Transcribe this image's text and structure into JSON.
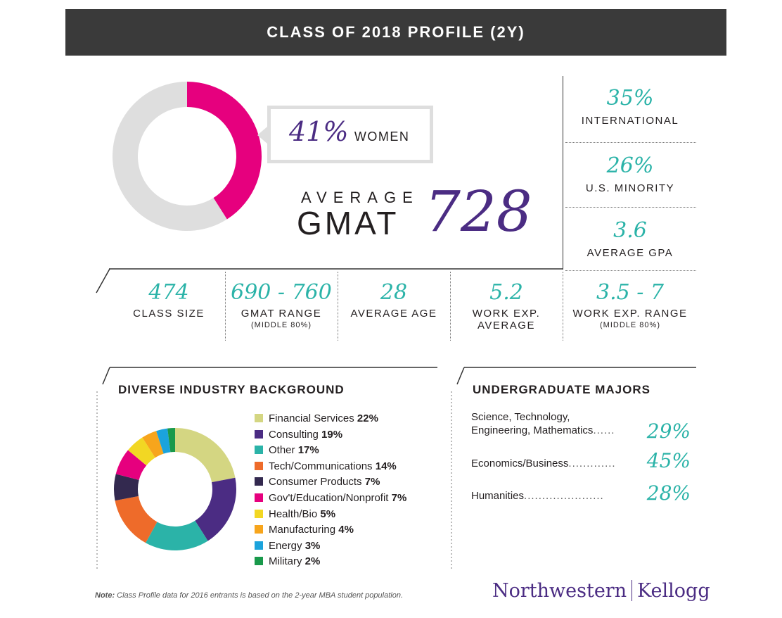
{
  "header": {
    "title": "CLASS OF 2018 PROFILE (2Y)"
  },
  "women": {
    "value": "41%",
    "label": "WOMEN",
    "fraction": 0.41
  },
  "gmat": {
    "average_label": "AVERAGE",
    "gmat_label": "GMAT",
    "value": "728"
  },
  "right_stats": [
    {
      "value": "35%",
      "label": "INTERNATIONAL"
    },
    {
      "value": "26%",
      "label": "U.S. MINORITY"
    },
    {
      "value": "3.6",
      "label": "AVERAGE GPA"
    }
  ],
  "row_stats": [
    {
      "value": "474",
      "label": "CLASS SIZE",
      "sub": ""
    },
    {
      "value": "690 - 760",
      "label": "GMAT RANGE",
      "sub": "(MIDDLE 80%)"
    },
    {
      "value": "28",
      "label": "AVERAGE AGE",
      "sub": ""
    },
    {
      "value": "5.2",
      "label": "WORK EXP.",
      "label2": "AVERAGE",
      "sub": ""
    },
    {
      "value": "3.5 - 7",
      "label": "WORK EXP. RANGE",
      "sub": "(MIDDLE 80%)"
    }
  ],
  "industry": {
    "title": "DIVERSE INDUSTRY BACKGROUND"
  },
  "majors": {
    "title": "UNDERGRADUATE MAJORS",
    "items": [
      {
        "line1": "Science, Technology,",
        "line2": "Engineering, Mathematics",
        "dots": "......",
        "pct": "29%"
      },
      {
        "line1": "",
        "line2": "Economics/Business",
        "dots": ".............",
        "pct": "45%"
      },
      {
        "line1": "",
        "line2": "Humanities",
        "dots": "......................",
        "pct": "28%"
      }
    ]
  },
  "footer": {
    "note_bold": "Note:",
    "note_text": " Class Profile data for 2016 entrants is based on the 2-year MBA student population.",
    "brand_left": "Northwestern",
    "brand_right": "Kellogg"
  },
  "colors": {
    "teal": "#2bb3a8",
    "purple": "#4b2c83",
    "magenta": "#e6007e",
    "ring_gray": "#dedede"
  },
  "chart_data": [
    {
      "type": "pie",
      "title": "",
      "categories": [
        "Women",
        ""
      ],
      "values": [
        41,
        59
      ],
      "colors": [
        "#e6007e",
        "#dedede"
      ]
    },
    {
      "type": "pie",
      "title": "DIVERSE INDUSTRY BACKGROUND",
      "categories": [
        "Financial Services",
        "Consulting",
        "Other",
        "Tech/Communications",
        "Consumer Products",
        "Gov't/Education/Nonprofit",
        "Health/Bio",
        "Manufacturing",
        "Energy",
        "Military"
      ],
      "values": [
        22,
        19,
        17,
        14,
        7,
        7,
        5,
        4,
        3,
        2
      ],
      "labels": [
        "22%",
        "19%",
        "17%",
        "14%",
        "7%",
        "7%",
        "5%",
        "4%",
        "3%",
        "2%"
      ],
      "colors": [
        "#d4d682",
        "#4b2c83",
        "#2bb3a8",
        "#ee6b2a",
        "#33294f",
        "#e6007e",
        "#f2d723",
        "#f7a51c",
        "#1ba3dc",
        "#19994b"
      ],
      "legend": "right"
    }
  ]
}
